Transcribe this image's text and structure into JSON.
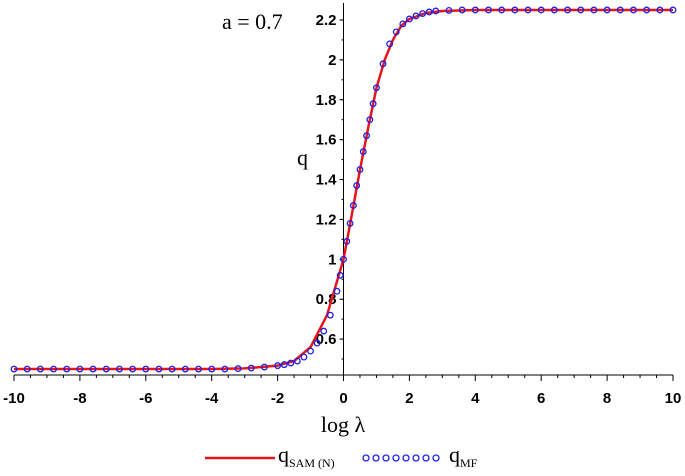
{
  "chart_data": {
    "type": "line",
    "annotation": "a = 0.7",
    "xlabel": "log λ",
    "ylabel": "q",
    "xlim": [
      -10,
      10
    ],
    "ylim": [
      0.42,
      2.26
    ],
    "grid": false,
    "xticks": [
      -10,
      -8,
      -6,
      -4,
      -2,
      0,
      2,
      4,
      6,
      8,
      10
    ],
    "yticks": [
      0.6,
      0.8,
      1,
      1.2,
      1.4,
      1.6,
      1.8,
      2,
      2.2
    ],
    "x_tick_labels": [
      "-10",
      "-8",
      "-6",
      "-4",
      "-2",
      "0",
      "2",
      "4",
      "6",
      "8",
      "10"
    ],
    "y_tick_labels": [
      "0.6",
      "0.8",
      "1",
      "1.2",
      "1.4",
      "1.6",
      "1.8",
      "2",
      "2.2"
    ],
    "legend_placement": "bottom-center",
    "series": [
      {
        "name": "q_SAM (N)",
        "legend_main": "q",
        "legend_sub": "SAM (N)",
        "style": "line",
        "color": "#e8141c",
        "x": [
          -10,
          -4,
          -3,
          -2,
          -1.5,
          -1,
          -0.5,
          0,
          0.25,
          0.5,
          0.75,
          1,
          1.25,
          1.5,
          1.75,
          2,
          2.5,
          3,
          4,
          10
        ],
        "y": [
          0.45,
          0.45,
          0.453,
          0.467,
          0.49,
          0.56,
          0.72,
          1.0,
          1.22,
          1.45,
          1.66,
          1.86,
          2.0,
          2.1,
          2.17,
          2.205,
          2.235,
          2.245,
          2.25,
          2.25
        ]
      },
      {
        "name": "q_MF",
        "legend_main": "q",
        "legend_sub": "MF",
        "style": "markers",
        "color": "#2020e0",
        "x": [
          -10,
          -9.6,
          -9.2,
          -8.8,
          -8.4,
          -8.0,
          -7.6,
          -7.2,
          -6.8,
          -6.4,
          -6.0,
          -5.6,
          -5.2,
          -4.8,
          -4.4,
          -4.0,
          -3.6,
          -3.2,
          -2.8,
          -2.4,
          -2.0,
          -1.8,
          -1.6,
          -1.4,
          -1.2,
          -1.0,
          -0.8,
          -0.6,
          -0.4,
          -0.2,
          -0.1,
          0,
          0.1,
          0.2,
          0.3,
          0.4,
          0.5,
          0.6,
          0.7,
          0.8,
          0.9,
          1.0,
          1.2,
          1.4,
          1.6,
          1.8,
          2.0,
          2.2,
          2.4,
          2.6,
          2.8,
          3.2,
          3.6,
          4.0,
          4.4,
          4.8,
          5.2,
          5.6,
          6.0,
          6.4,
          6.8,
          7.2,
          7.6,
          8.0,
          8.4,
          8.8,
          9.2,
          9.6,
          10
        ],
        "y": [
          0.45,
          0.45,
          0.45,
          0.45,
          0.45,
          0.45,
          0.45,
          0.45,
          0.45,
          0.45,
          0.45,
          0.45,
          0.45,
          0.45,
          0.45,
          0.45,
          0.45,
          0.452,
          0.455,
          0.46,
          0.467,
          0.472,
          0.48,
          0.49,
          0.51,
          0.54,
          0.58,
          0.64,
          0.72,
          0.84,
          0.92,
          1.0,
          1.09,
          1.18,
          1.27,
          1.37,
          1.45,
          1.54,
          1.62,
          1.7,
          1.78,
          1.86,
          1.98,
          2.08,
          2.14,
          2.18,
          2.205,
          2.22,
          2.232,
          2.24,
          2.245,
          2.248,
          2.25,
          2.25,
          2.25,
          2.25,
          2.25,
          2.25,
          2.25,
          2.25,
          2.25,
          2.25,
          2.25,
          2.25,
          2.25,
          2.25,
          2.25,
          2.25,
          2.25
        ]
      }
    ]
  }
}
